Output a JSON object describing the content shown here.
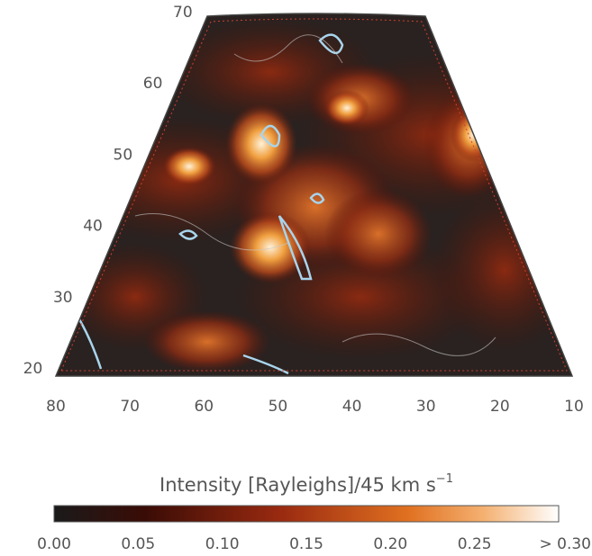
{
  "map": {
    "x_axis": {
      "ticks": [
        80,
        70,
        60,
        50,
        40,
        30,
        20,
        10
      ]
    },
    "y_axis": {
      "ticks": [
        20,
        30,
        40,
        50,
        60,
        70
      ]
    },
    "colorbar": {
      "label": "Intensity [Rayleighs]/45 km s",
      "label_superscript": "−1",
      "ticks": [
        "0.00",
        "0.05",
        "0.10",
        "0.15",
        "0.20",
        "0.25",
        "> 0.30"
      ]
    }
  }
}
